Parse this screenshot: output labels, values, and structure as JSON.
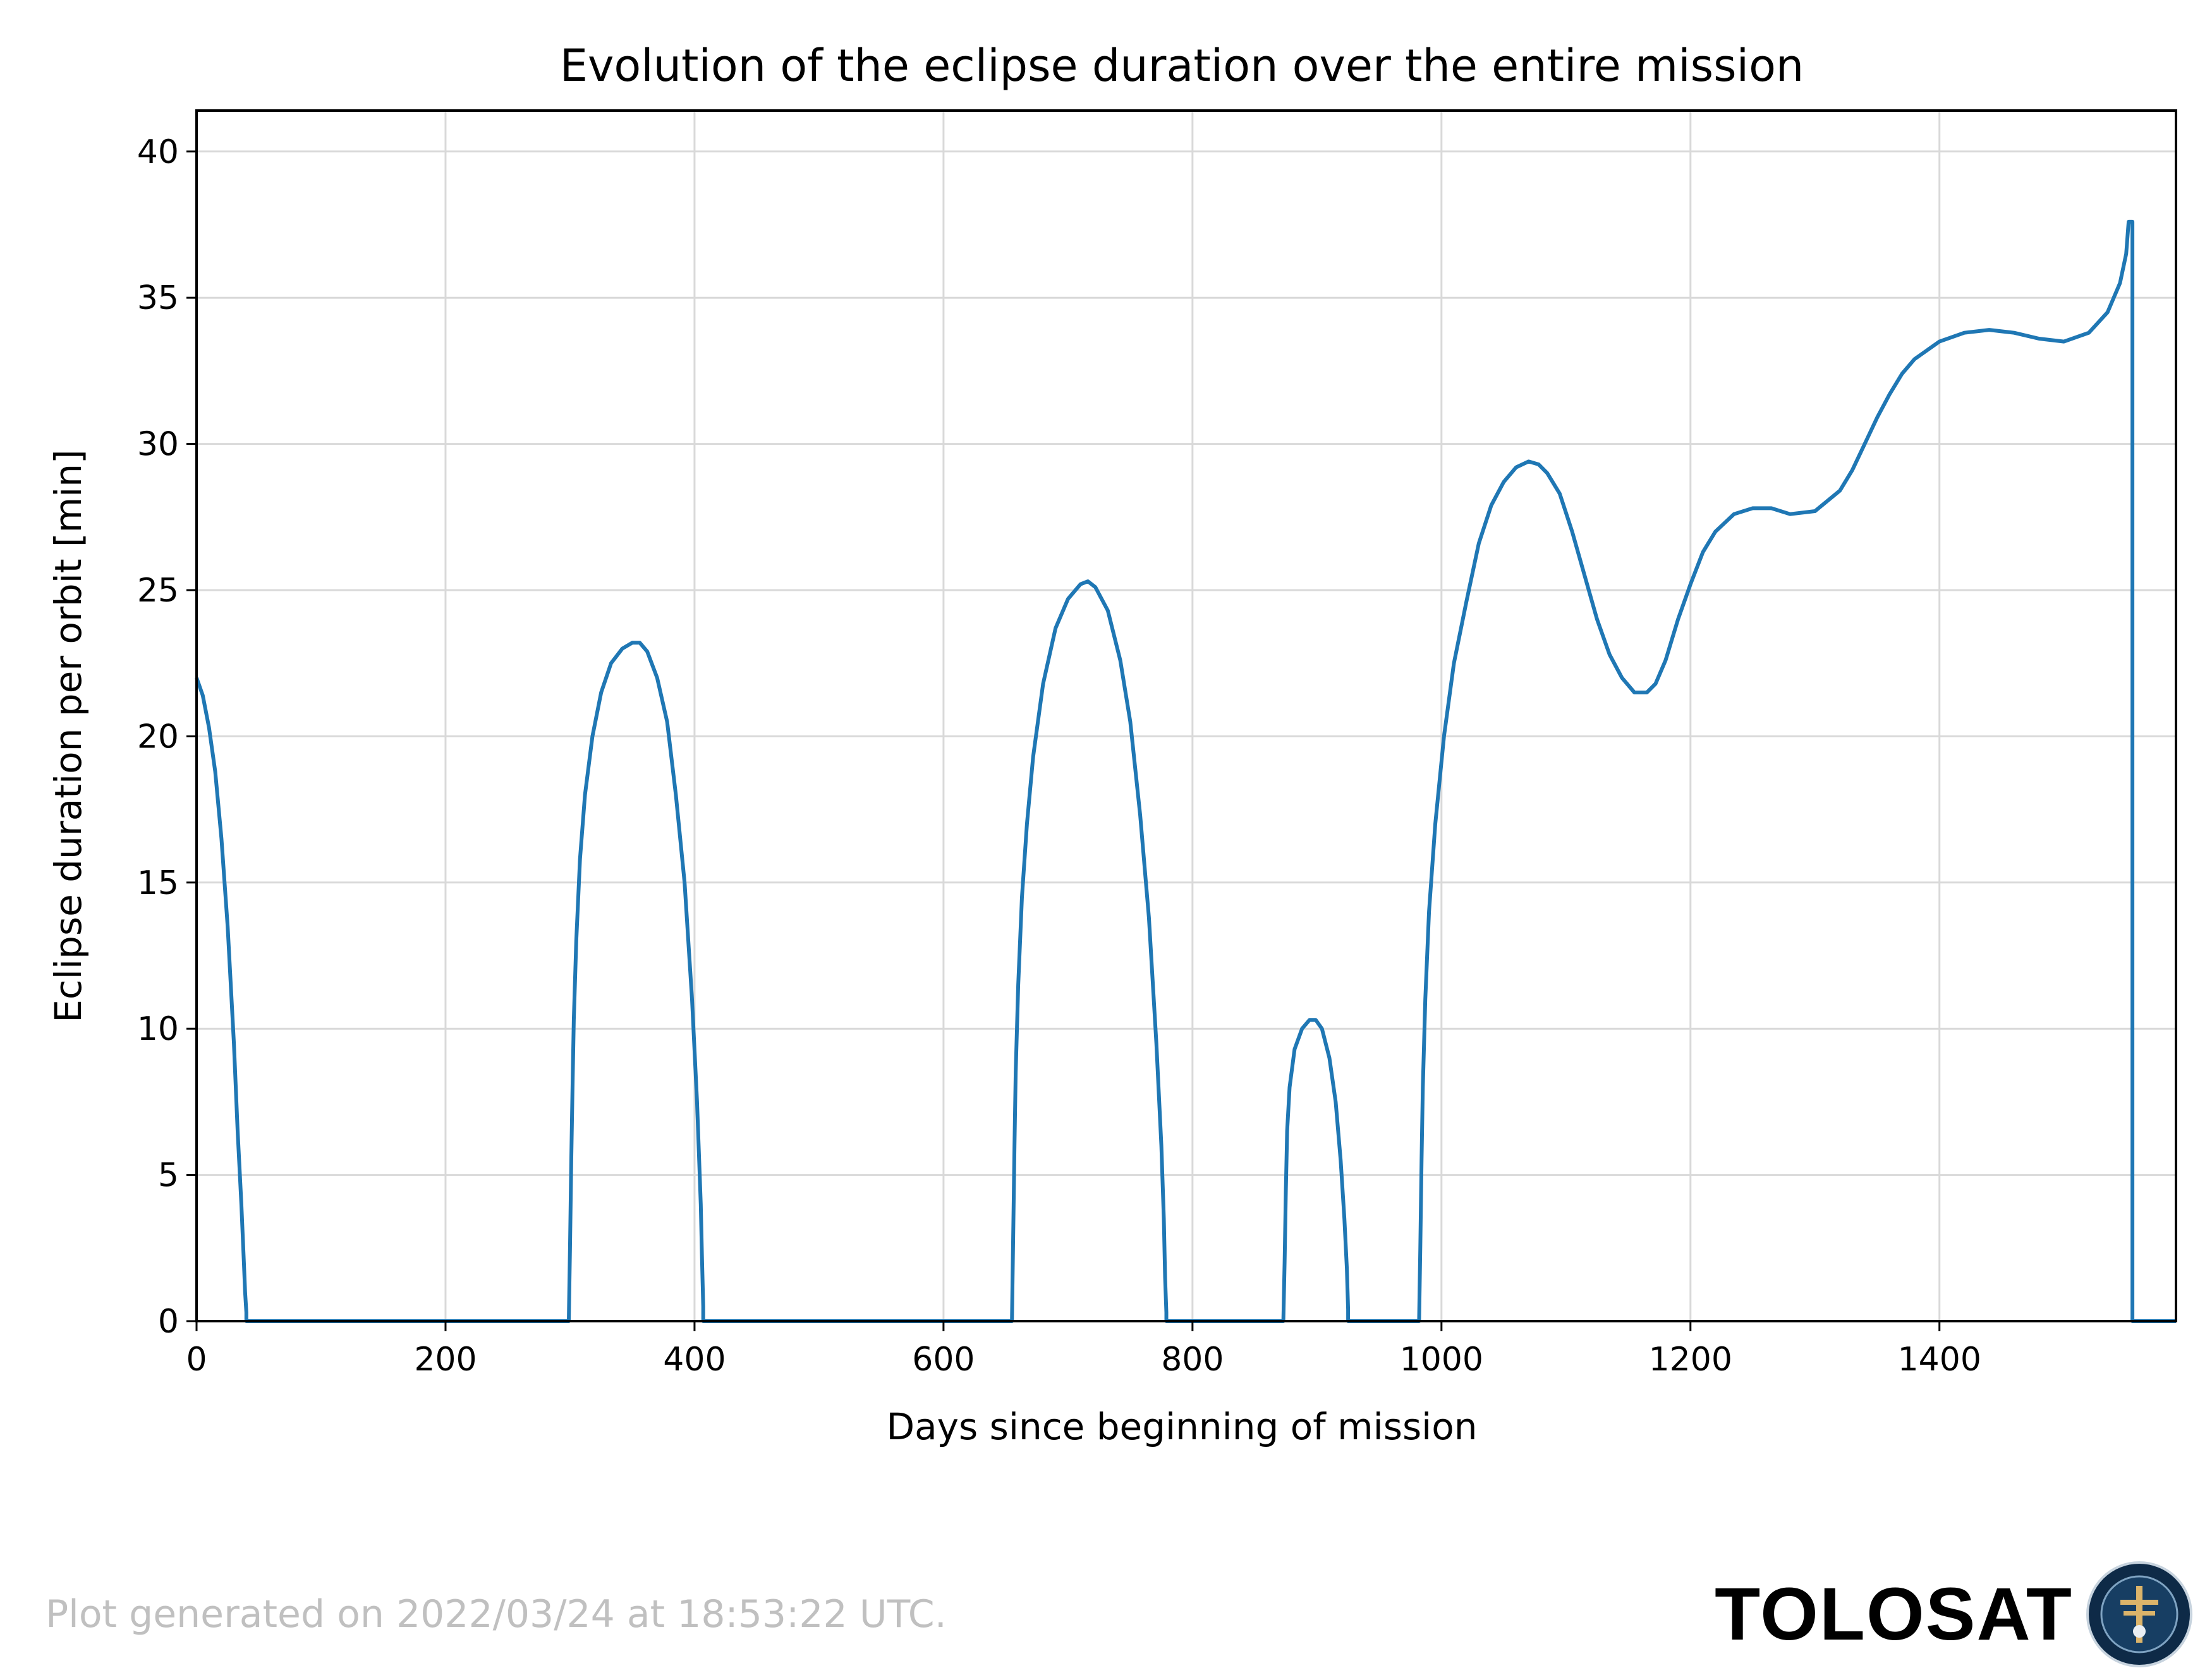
{
  "chart_data": {
    "type": "line",
    "title": "Evolution of the eclipse duration over the entire mission",
    "xlabel": "Days since beginning of mission",
    "ylabel": "Eclipse duration per orbit [min]",
    "xlim": [
      0,
      1590
    ],
    "ylim": [
      0,
      41.4
    ],
    "xticks": [
      "0",
      "200",
      "400",
      "600",
      "800",
      "1000",
      "1200",
      "1400"
    ],
    "yticks": [
      "0",
      "5",
      "10",
      "15",
      "20",
      "25",
      "30",
      "35",
      "40"
    ],
    "grid": true,
    "legend": "none",
    "line_color": "#1f77b4",
    "series": [
      {
        "x": [
          0,
          5,
          10,
          15,
          20,
          25,
          30,
          33,
          36,
          38,
          39,
          40,
          40,
          100,
          200,
          299,
          300,
          301,
          302,
          303,
          305,
          308,
          312,
          318,
          325,
          333,
          342,
          350,
          356,
          362,
          370,
          378,
          385,
          392,
          398,
          402,
          405,
          406,
          407,
          407,
          500,
          600,
          655,
          656,
          657,
          658,
          660,
          663,
          667,
          672,
          680,
          690,
          700,
          710,
          716,
          722,
          732,
          742,
          750,
          758,
          765,
          771,
          775,
          777,
          778,
          779,
          779,
          850,
          873,
          874,
          875,
          876,
          878,
          882,
          888,
          894,
          899,
          904,
          910,
          915,
          919,
          922,
          924,
          925,
          925,
          950,
          982,
          983,
          984,
          985,
          987,
          990,
          995,
          1002,
          1010,
          1020,
          1030,
          1040,
          1050,
          1060,
          1070,
          1078,
          1085,
          1095,
          1105,
          1115,
          1125,
          1135,
          1145,
          1155,
          1165,
          1172,
          1180,
          1190,
          1200,
          1210,
          1220,
          1235,
          1250,
          1265,
          1280,
          1300,
          1320,
          1330,
          1340,
          1350,
          1360,
          1370,
          1380,
          1400,
          1420,
          1440,
          1460,
          1480,
          1500,
          1520,
          1535,
          1545,
          1550,
          1552,
          1553,
          1554,
          1555,
          1555,
          1556,
          1590
        ],
        "y": [
          22.0,
          21.4,
          20.3,
          18.8,
          16.5,
          13.5,
          9.5,
          6.5,
          4.0,
          2.0,
          1.0,
          0.3,
          0,
          0,
          0,
          0,
          2.5,
          5.5,
          8.0,
          10.3,
          13.0,
          15.8,
          18.0,
          20.0,
          21.5,
          22.5,
          23.0,
          23.2,
          23.2,
          22.9,
          22.0,
          20.5,
          18.0,
          15.0,
          11.0,
          7.5,
          4.0,
          2.2,
          0.5,
          0,
          0,
          0,
          0,
          3.0,
          6.0,
          8.5,
          11.5,
          14.5,
          17.0,
          19.3,
          21.8,
          23.7,
          24.7,
          25.2,
          25.3,
          25.1,
          24.3,
          22.6,
          20.5,
          17.3,
          13.8,
          9.5,
          6.0,
          3.5,
          1.5,
          0.3,
          0,
          0,
          0,
          2.0,
          4.5,
          6.5,
          8.0,
          9.3,
          10.0,
          10.3,
          10.3,
          10.0,
          9.0,
          7.5,
          5.5,
          3.5,
          1.8,
          0.4,
          0,
          0,
          0,
          2.5,
          5.5,
          8.0,
          11.0,
          14.0,
          17.0,
          20.0,
          22.5,
          24.6,
          26.6,
          27.9,
          28.7,
          29.2,
          29.4,
          29.3,
          29.0,
          28.3,
          27.0,
          25.5,
          24.0,
          22.8,
          22.0,
          21.5,
          21.5,
          21.8,
          22.6,
          24.0,
          25.2,
          26.3,
          27.0,
          27.6,
          27.8,
          27.8,
          27.6,
          27.7,
          28.4,
          29.1,
          30.0,
          30.9,
          31.7,
          32.4,
          32.9,
          33.5,
          33.8,
          33.9,
          33.8,
          33.6,
          33.5,
          33.8,
          34.5,
          35.5,
          36.5,
          37.6,
          37.6,
          37.6,
          37.6,
          0,
          0,
          0
        ]
      }
    ]
  },
  "footer": {
    "timestamp_note": "Plot generated on 2022/03/24 at 18:53:22 UTC.",
    "brand": "TOLOSAT"
  }
}
